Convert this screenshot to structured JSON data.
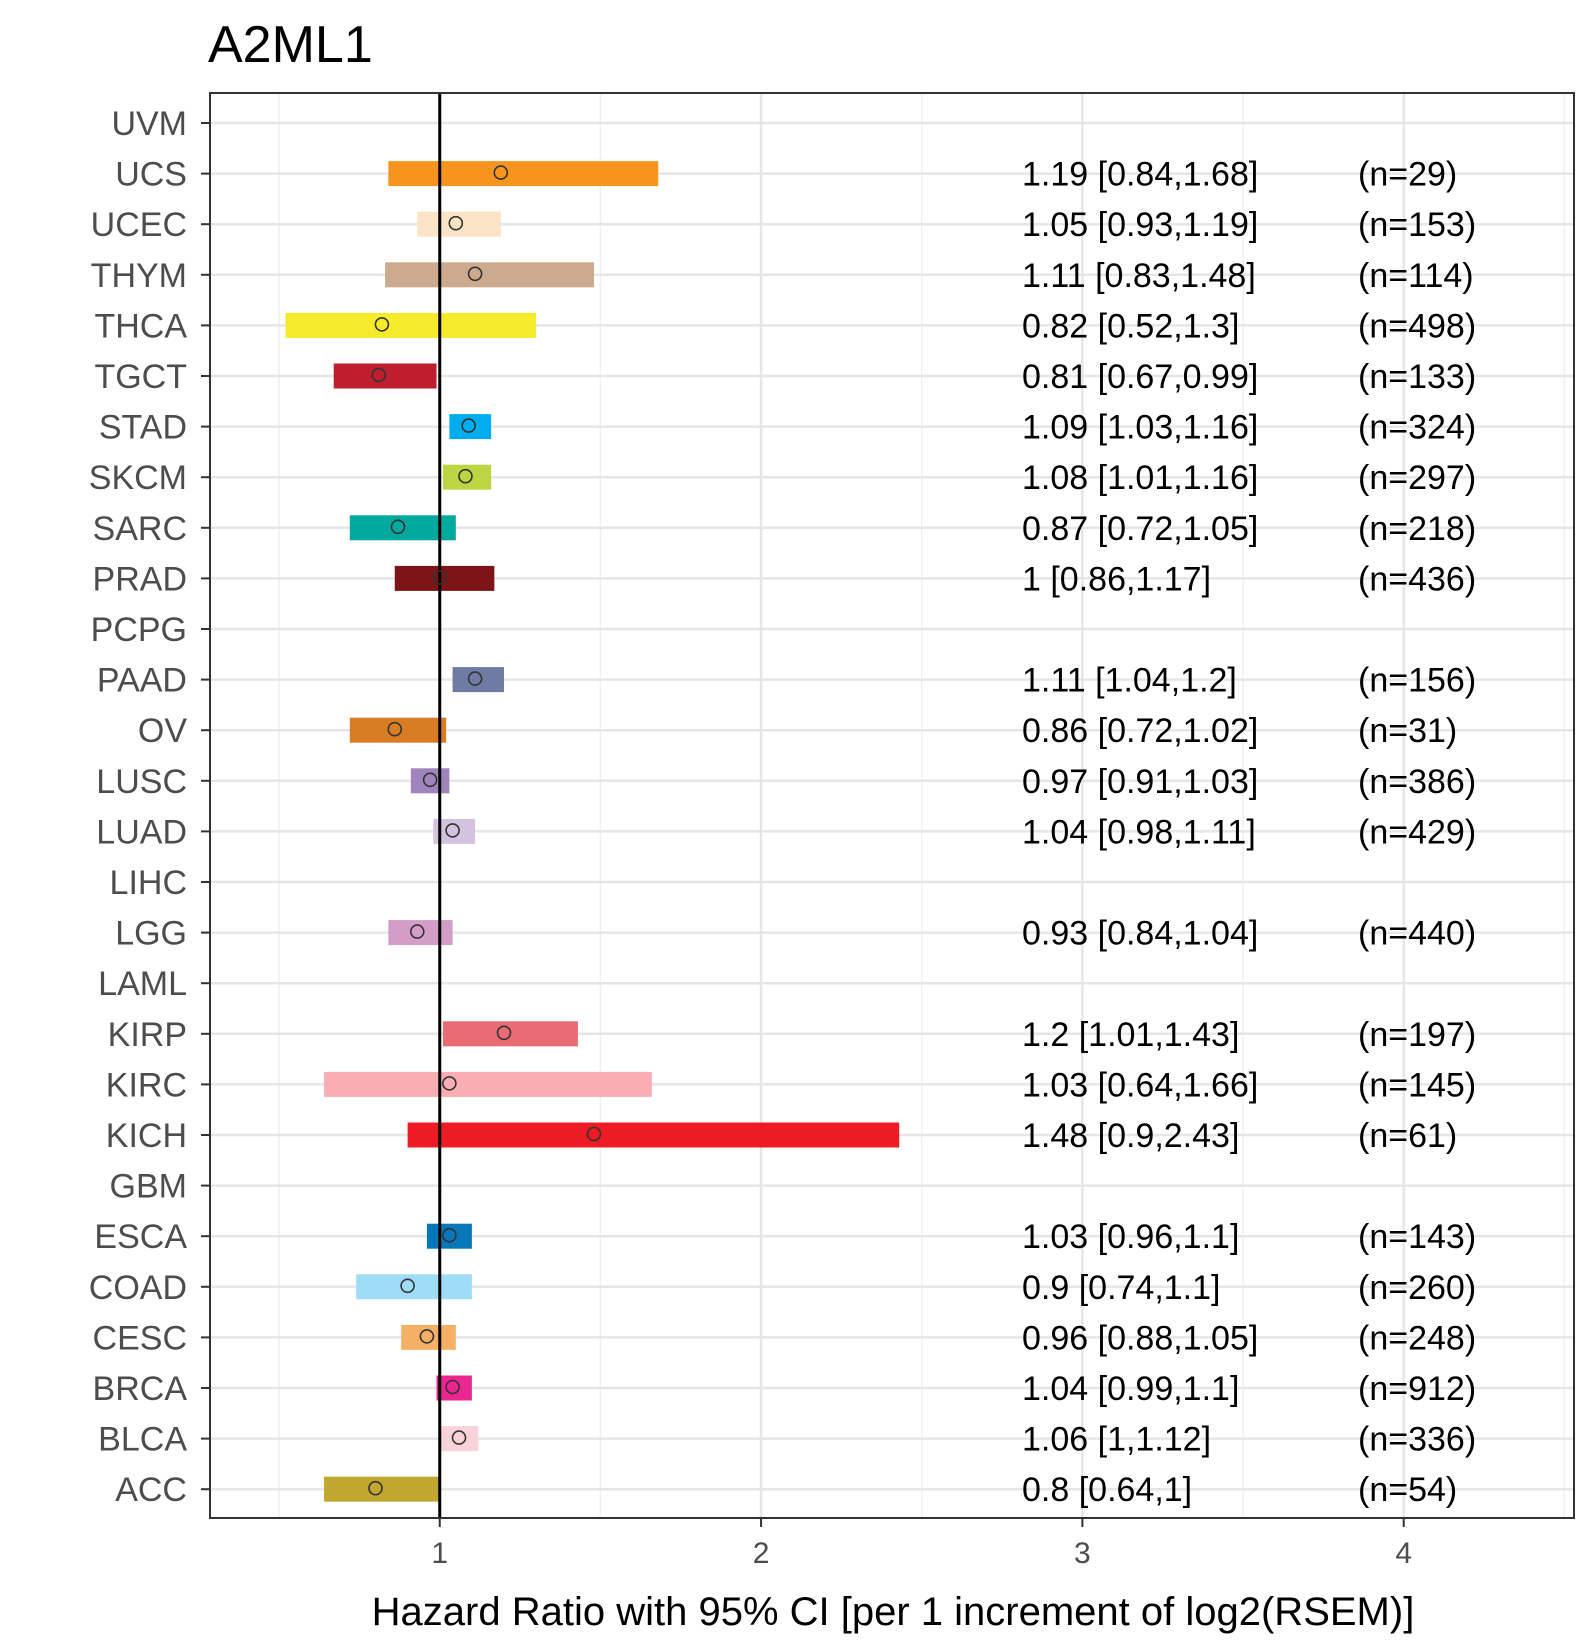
{
  "chart_data": {
    "type": "forest",
    "title": "A2ML1",
    "xlabel": "Hazard Ratio with 95% CI [per 1 increment of log2(RSEM)]",
    "ylabel": "",
    "xlim": [
      0.285,
      4.53
    ],
    "xticks": [
      1,
      2,
      3,
      4
    ],
    "xtick_labels": [
      "1",
      "2",
      "3",
      "4"
    ],
    "xminor_gridlines": [
      0.5,
      1.5,
      2.5,
      3.5,
      4.5
    ],
    "reference_line": 1,
    "grid": true,
    "series": [
      {
        "name": "UVM",
        "hr": null,
        "lower": null,
        "upper": null,
        "label": "",
        "n": "",
        "color": "#cccccc"
      },
      {
        "name": "UCS",
        "hr": 1.19,
        "lower": 0.84,
        "upper": 1.68,
        "label": "1.19 [0.84,1.68]",
        "n": "(n=29)",
        "color": "#F7941D"
      },
      {
        "name": "UCEC",
        "hr": 1.05,
        "lower": 0.93,
        "upper": 1.19,
        "label": "1.05 [0.93,1.19]",
        "n": "(n=153)",
        "color": "#FBE3C6"
      },
      {
        "name": "THYM",
        "hr": 1.11,
        "lower": 0.83,
        "upper": 1.48,
        "label": "1.11 [0.83,1.48]",
        "n": "(n=114)",
        "color": "#CDAA8E"
      },
      {
        "name": "THCA",
        "hr": 0.82,
        "lower": 0.52,
        "upper": 1.3,
        "label": "0.82 [0.52,1.3]",
        "n": "(n=498)",
        "color": "#F5EB2A"
      },
      {
        "name": "TGCT",
        "hr": 0.81,
        "lower": 0.67,
        "upper": 0.99,
        "label": "0.81 [0.67,0.99]",
        "n": "(n=133)",
        "color": "#BE1E2D"
      },
      {
        "name": "STAD",
        "hr": 1.09,
        "lower": 1.03,
        "upper": 1.16,
        "label": "1.09 [1.03,1.16]",
        "n": "(n=324)",
        "color": "#00AEEF"
      },
      {
        "name": "SKCM",
        "hr": 1.08,
        "lower": 1.01,
        "upper": 1.16,
        "label": "1.08 [1.01,1.16]",
        "n": "(n=297)",
        "color": "#BBD642"
      },
      {
        "name": "SARC",
        "hr": 0.87,
        "lower": 0.72,
        "upper": 1.05,
        "label": "0.87 [0.72,1.05]",
        "n": "(n=218)",
        "color": "#00A99D"
      },
      {
        "name": "PRAD",
        "hr": 1,
        "lower": 0.86,
        "upper": 1.17,
        "label": "1 [0.86,1.17]",
        "n": "(n=436)",
        "color": "#7E1416"
      },
      {
        "name": "PCPG",
        "hr": null,
        "lower": null,
        "upper": null,
        "label": "",
        "n": "",
        "color": "#cccccc"
      },
      {
        "name": "PAAD",
        "hr": 1.11,
        "lower": 1.04,
        "upper": 1.2,
        "label": "1.11 [1.04,1.2]",
        "n": "(n=156)",
        "color": "#6E7BA2"
      },
      {
        "name": "OV",
        "hr": 0.86,
        "lower": 0.72,
        "upper": 1.02,
        "label": "0.86 [0.72,1.02]",
        "n": "(n=31)",
        "color": "#D97D25"
      },
      {
        "name": "LUSC",
        "hr": 0.97,
        "lower": 0.91,
        "upper": 1.03,
        "label": "0.97 [0.91,1.03]",
        "n": "(n=386)",
        "color": "#A084BD"
      },
      {
        "name": "LUAD",
        "hr": 1.04,
        "lower": 0.98,
        "upper": 1.11,
        "label": "1.04 [0.98,1.11]",
        "n": "(n=429)",
        "color": "#D3C3E0"
      },
      {
        "name": "LIHC",
        "hr": null,
        "lower": null,
        "upper": null,
        "label": "",
        "n": "",
        "color": "#cccccc"
      },
      {
        "name": "LGG",
        "hr": 0.93,
        "lower": 0.84,
        "upper": 1.04,
        "label": "0.93 [0.84,1.04]",
        "n": "(n=440)",
        "color": "#D49DC7"
      },
      {
        "name": "LAML",
        "hr": null,
        "lower": null,
        "upper": null,
        "label": "",
        "n": "",
        "color": "#cccccc"
      },
      {
        "name": "KIRP",
        "hr": 1.2,
        "lower": 1.01,
        "upper": 1.43,
        "label": "1.2 [1.01,1.43]",
        "n": "(n=197)",
        "color": "#EA6B73"
      },
      {
        "name": "KIRC",
        "hr": 1.03,
        "lower": 0.64,
        "upper": 1.66,
        "label": "1.03 [0.64,1.66]",
        "n": "(n=145)",
        "color": "#F9AEB4"
      },
      {
        "name": "KICH",
        "hr": 1.48,
        "lower": 0.9,
        "upper": 2.43,
        "label": "1.48 [0.9,2.43]",
        "n": "(n=61)",
        "color": "#ED1C24"
      },
      {
        "name": "GBM",
        "hr": null,
        "lower": null,
        "upper": null,
        "label": "",
        "n": "",
        "color": "#cccccc"
      },
      {
        "name": "ESCA",
        "hr": 1.03,
        "lower": 0.96,
        "upper": 1.1,
        "label": "1.03 [0.96,1.1]",
        "n": "(n=143)",
        "color": "#0877B9"
      },
      {
        "name": "COAD",
        "hr": 0.9,
        "lower": 0.74,
        "upper": 1.1,
        "label": "0.9 [0.74,1.1]",
        "n": "(n=260)",
        "color": "#9EDCF8"
      },
      {
        "name": "CESC",
        "hr": 0.96,
        "lower": 0.88,
        "upper": 1.05,
        "label": "0.96 [0.88,1.05]",
        "n": "(n=248)",
        "color": "#F6B066"
      },
      {
        "name": "BRCA",
        "hr": 1.04,
        "lower": 0.99,
        "upper": 1.1,
        "label": "1.04 [0.99,1.1]",
        "n": "(n=912)",
        "color": "#EC2690"
      },
      {
        "name": "BLCA",
        "hr": 1.06,
        "lower": 1,
        "upper": 1.12,
        "label": "1.06 [1,1.12]",
        "n": "(n=336)",
        "color": "#FAD2D9"
      },
      {
        "name": "ACC",
        "hr": 0.8,
        "lower": 0.64,
        "upper": 1,
        "label": "0.8 [0.64,1]",
        "n": "(n=54)",
        "color": "#C1A72F"
      }
    ]
  }
}
